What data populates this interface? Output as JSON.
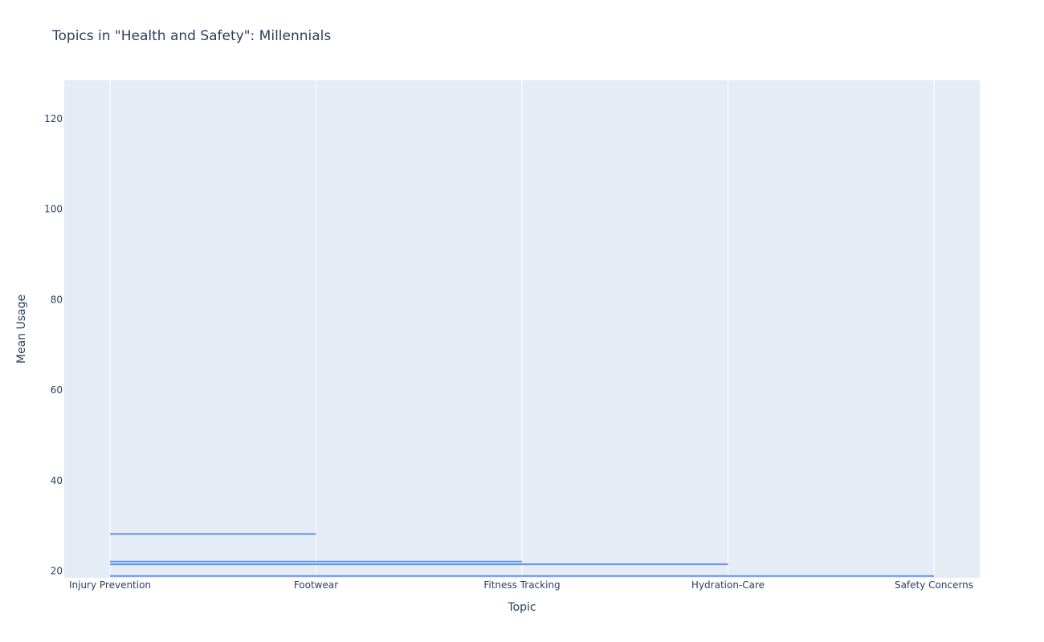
{
  "chart_data": {
    "type": "line",
    "title": "Topics in \"Health and Safety\": Millennials",
    "xlabel": "Topic",
    "ylabel": "Mean Usage",
    "categories": [
      "Injury Prevention",
      "Footwear",
      "Fitness Tracking",
      "Hydration-Care",
      "Safety Concerns"
    ],
    "yticks": [
      20,
      40,
      60,
      80,
      100,
      120
    ],
    "ylim": [
      18.5,
      128.5
    ],
    "grid": true,
    "line_color": "#6495ed",
    "plot_bg": "#e5ecf6",
    "segments": [
      {
        "x": [
          "Injury Prevention",
          "Footwear"
        ],
        "y": [
          28.2,
          28.2
        ]
      },
      {
        "x": [
          "Injury Prevention",
          "Fitness Tracking"
        ],
        "y": [
          22.1,
          22.1
        ]
      },
      {
        "x": [
          "Injury Prevention",
          "Hydration-Care"
        ],
        "y": [
          21.5,
          21.5
        ]
      },
      {
        "x": [
          "Injury Prevention",
          "Safety Concerns"
        ],
        "y": [
          18.9,
          18.9
        ]
      }
    ]
  }
}
